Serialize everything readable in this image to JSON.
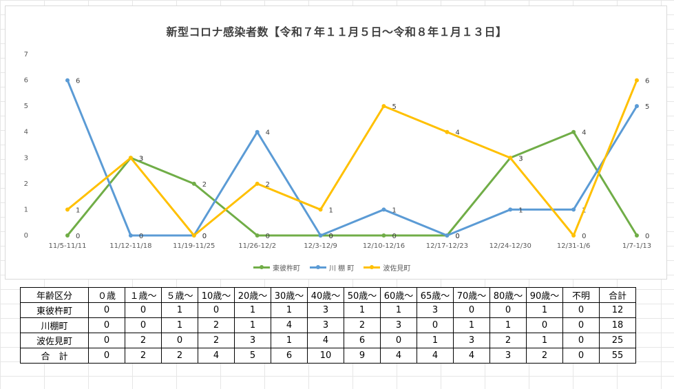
{
  "chart_data": {
    "type": "line",
    "title": "新型コロナ感染者数【令和７年１１月５日～令和８年１月１３日】",
    "categories": [
      "11/5-11/11",
      "11/12-11/18",
      "11/19-11/25",
      "11/26-12/2",
      "12/3-12/9",
      "12/10-12/16",
      "12/17-12/23",
      "12/24-12/30",
      "12/31-1/6",
      "1/7-1/13"
    ],
    "ylim": [
      0,
      7
    ],
    "yticks": [
      "0",
      "1",
      "2",
      "3",
      "4",
      "5",
      "6",
      "7"
    ],
    "grid": false,
    "legend": "bottom",
    "series": [
      {
        "name": "東彼杵町",
        "color": "#70ad47",
        "values": [
          0,
          3,
          2,
          0,
          0,
          0,
          0,
          3,
          4,
          0
        ]
      },
      {
        "name": "川 棚 町",
        "color": "#5b9bd5",
        "values": [
          6,
          0,
          0,
          4,
          0,
          1,
          0,
          1,
          1,
          5
        ]
      },
      {
        "name": "波佐見町",
        "color": "#ffc000",
        "values": [
          1,
          3,
          0,
          2,
          1,
          5,
          4,
          3,
          0,
          6
        ]
      }
    ]
  },
  "table": {
    "header": [
      "年齢区分",
      "０歳",
      "１歳～",
      "５歳～",
      "10歳～",
      "20歳～",
      "30歳～",
      "40歳～",
      "50歳～",
      "60歳～",
      "65歳～",
      "70歳～",
      "80歳～",
      "90歳～",
      "不明",
      "合計"
    ],
    "rows": [
      [
        "東彼杵町",
        "0",
        "0",
        "1",
        "0",
        "1",
        "1",
        "3",
        "1",
        "1",
        "3",
        "0",
        "0",
        "1",
        "0",
        "12"
      ],
      [
        "川棚町",
        "0",
        "0",
        "1",
        "2",
        "1",
        "4",
        "3",
        "2",
        "3",
        "0",
        "1",
        "1",
        "0",
        "0",
        "18"
      ],
      [
        "波佐見町",
        "0",
        "2",
        "0",
        "2",
        "3",
        "1",
        "4",
        "6",
        "0",
        "1",
        "3",
        "2",
        "1",
        "0",
        "25"
      ],
      [
        "合　計",
        "0",
        "2",
        "2",
        "4",
        "5",
        "6",
        "10",
        "9",
        "4",
        "4",
        "4",
        "3",
        "2",
        "0",
        "55"
      ]
    ]
  }
}
